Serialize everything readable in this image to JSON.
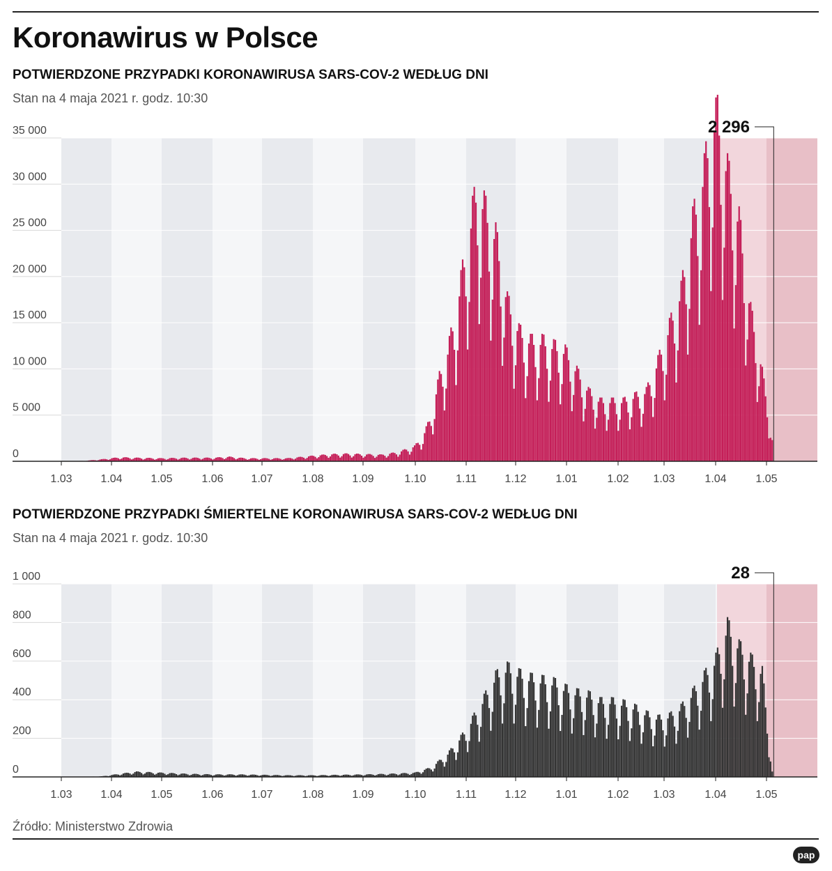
{
  "title": "Koronawirus w Polsce",
  "source": "Źródło: Ministerstwo Zdrowia",
  "logo_text": "pap",
  "colors": {
    "cases_bar": "#c41d57",
    "deaths_bar": "#333333",
    "band_dark": "#e8eaee",
    "band_light": "#f5f6f8",
    "shade_light": "#f2d6dc",
    "shade_dark": "#e8bfc7"
  },
  "chart_data": [
    {
      "type": "bar",
      "title": "POTWIERDZONE PRZYPADKI KORONAWIRUSA SARS-COV-2 WEDŁUG DNI",
      "subtitle": "Stan na 4 maja 2021 r. godz. 10:30",
      "x_ticks": [
        "1.03",
        "1.04",
        "1.05",
        "1.06",
        "1.07",
        "1.08",
        "1.09",
        "1.10",
        "1.11",
        "1.12",
        "1.01",
        "1.02",
        "1.03",
        "1.04",
        "1.05"
      ],
      "y_ticks": [
        "0",
        "5 000",
        "10 000",
        "15 000",
        "20 000",
        "25 000",
        "30 000",
        "35 000"
      ],
      "ylim": [
        0,
        35000
      ],
      "last_value": 2296,
      "last_value_label": "2 296",
      "anchors": [
        [
          "2020-03-04",
          0
        ],
        [
          "2020-03-15",
          50
        ],
        [
          "2020-03-25",
          200
        ],
        [
          "2020-04-05",
          400
        ],
        [
          "2020-04-15",
          350
        ],
        [
          "2020-04-30",
          300
        ],
        [
          "2020-05-15",
          350
        ],
        [
          "2020-05-31",
          350
        ],
        [
          "2020-06-10",
          450
        ],
        [
          "2020-06-20",
          300
        ],
        [
          "2020-07-01",
          300
        ],
        [
          "2020-07-15",
          300
        ],
        [
          "2020-07-31",
          550
        ],
        [
          "2020-08-10",
          700
        ],
        [
          "2020-08-20",
          750
        ],
        [
          "2020-08-31",
          700
        ],
        [
          "2020-09-10",
          650
        ],
        [
          "2020-09-20",
          900
        ],
        [
          "2020-09-30",
          1500
        ],
        [
          "2020-10-05",
          2500
        ],
        [
          "2020-10-10",
          4500
        ],
        [
          "2020-10-15",
          8500
        ],
        [
          "2020-10-20",
          11000
        ],
        [
          "2020-10-25",
          15000
        ],
        [
          "2020-10-31",
          21000
        ],
        [
          "2020-11-04",
          25000
        ],
        [
          "2020-11-07",
          27500
        ],
        [
          "2020-11-12",
          25000
        ],
        [
          "2020-11-18",
          22500
        ],
        [
          "2020-11-25",
          16000
        ],
        [
          "2020-12-02",
          13000
        ],
        [
          "2020-12-09",
          12000
        ],
        [
          "2020-12-16",
          12000
        ],
        [
          "2020-12-23",
          11500
        ],
        [
          "2020-12-30",
          11000
        ],
        [
          "2021-01-06",
          9000
        ],
        [
          "2021-01-13",
          7000
        ],
        [
          "2021-01-20",
          6000
        ],
        [
          "2021-01-27",
          6000
        ],
        [
          "2021-02-03",
          6000
        ],
        [
          "2021-02-10",
          6500
        ],
        [
          "2021-02-17",
          7000
        ],
        [
          "2021-02-24",
          10000
        ],
        [
          "2021-03-03",
          13500
        ],
        [
          "2021-03-10",
          17000
        ],
        [
          "2021-03-17",
          24000
        ],
        [
          "2021-03-24",
          29000
        ],
        [
          "2021-03-28",
          33500
        ],
        [
          "2021-04-01",
          34500
        ],
        [
          "2021-04-07",
          29000
        ],
        [
          "2021-04-14",
          24000
        ],
        [
          "2021-04-21",
          15000
        ],
        [
          "2021-04-27",
          10000
        ],
        [
          "2021-05-04",
          2296
        ]
      ],
      "start_date": "2020-03-01",
      "end_date": "2021-05-04"
    },
    {
      "type": "bar",
      "title": "POTWIERDZONE PRZYPADKI ŚMIERTELNE KORONAWIRUSA SARS-COV-2 WEDŁUG DNI",
      "subtitle": "Stan na 4 maja 2021 r. godz. 10:30",
      "x_ticks": [
        "1.03",
        "1.04",
        "1.05",
        "1.06",
        "1.07",
        "1.08",
        "1.09",
        "1.10",
        "1.11",
        "1.12",
        "1.01",
        "1.02",
        "1.03",
        "1.04",
        "1.05"
      ],
      "y_ticks": [
        "0",
        "200",
        "400",
        "600",
        "800",
        "1 000"
      ],
      "ylim": [
        0,
        1000
      ],
      "last_value": 28,
      "last_value_label": "28",
      "anchors": [
        [
          "2020-03-12",
          0
        ],
        [
          "2020-03-25",
          3
        ],
        [
          "2020-04-05",
          15
        ],
        [
          "2020-04-15",
          25
        ],
        [
          "2020-04-30",
          20
        ],
        [
          "2020-05-15",
          15
        ],
        [
          "2020-05-31",
          12
        ],
        [
          "2020-06-15",
          12
        ],
        [
          "2020-06-30",
          10
        ],
        [
          "2020-07-15",
          8
        ],
        [
          "2020-07-31",
          8
        ],
        [
          "2020-08-15",
          10
        ],
        [
          "2020-08-31",
          12
        ],
        [
          "2020-09-15",
          15
        ],
        [
          "2020-09-30",
          20
        ],
        [
          "2020-10-10",
          45
        ],
        [
          "2020-10-20",
          110
        ],
        [
          "2020-10-31",
          220
        ],
        [
          "2020-11-10",
          360
        ],
        [
          "2020-11-18",
          480
        ],
        [
          "2020-11-25",
          520
        ],
        [
          "2020-12-02",
          490
        ],
        [
          "2020-12-09",
          470
        ],
        [
          "2020-12-16",
          460
        ],
        [
          "2020-12-23",
          450
        ],
        [
          "2020-12-30",
          420
        ],
        [
          "2021-01-06",
          400
        ],
        [
          "2021-01-13",
          390
        ],
        [
          "2021-01-20",
          360
        ],
        [
          "2021-01-27",
          360
        ],
        [
          "2021-02-03",
          350
        ],
        [
          "2021-02-10",
          330
        ],
        [
          "2021-02-17",
          300
        ],
        [
          "2021-02-24",
          280
        ],
        [
          "2021-03-03",
          290
        ],
        [
          "2021-03-10",
          330
        ],
        [
          "2021-03-17",
          400
        ],
        [
          "2021-03-24",
          480
        ],
        [
          "2021-03-31",
          560
        ],
        [
          "2021-04-07",
          720
        ],
        [
          "2021-04-14",
          620
        ],
        [
          "2021-04-21",
          560
        ],
        [
          "2021-04-28",
          500
        ],
        [
          "2021-05-04",
          28
        ]
      ],
      "start_date": "2020-03-01",
      "end_date": "2021-05-04"
    }
  ]
}
